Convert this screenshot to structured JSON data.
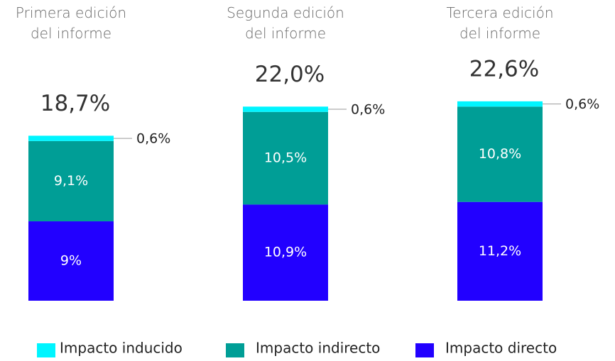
{
  "chart_data": {
    "type": "bar",
    "stacked": true,
    "categories": [
      "Primera edición del informe",
      "Segunda edición del informe",
      "Tercera edición del informe"
    ],
    "totals": [
      18.7,
      22.0,
      22.6
    ],
    "total_labels": [
      "18,7%",
      "22,0%",
      "22,6%"
    ],
    "series": [
      {
        "name": "Impacto inducido",
        "color": "#00f5ff",
        "values": [
          0.6,
          0.6,
          0.6
        ],
        "value_labels": [
          "0,6%",
          "0,6%",
          "0,6%"
        ]
      },
      {
        "name": "Impacto indirecto",
        "color": "#009e96",
        "values": [
          9.1,
          10.5,
          10.8
        ],
        "value_labels": [
          "9,1%",
          "10,5%",
          "10,8%"
        ]
      },
      {
        "name": "Impacto directo",
        "color": "#2200ff",
        "values": [
          9,
          10.9,
          11.2
        ],
        "value_labels": [
          "9%",
          "10,9%",
          "11,2%"
        ]
      }
    ]
  }
}
